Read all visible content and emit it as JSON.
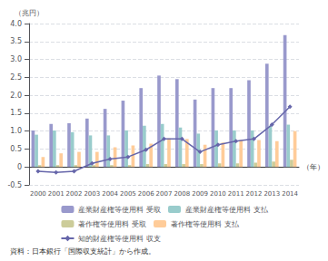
{
  "chart_data": {
    "type": "bar",
    "categories": [
      "2000",
      "2001",
      "2002",
      "2003",
      "2004",
      "2005",
      "2006",
      "2007",
      "2008",
      "2009",
      "2010",
      "2011",
      "2012",
      "2013",
      "2014"
    ],
    "series": [
      {
        "name": "産業財産権等使用料 受取",
        "type": "bar",
        "color": "#9999cc",
        "values": [
          1.02,
          1.2,
          1.22,
          1.35,
          1.62,
          1.85,
          2.2,
          2.55,
          2.45,
          1.88,
          2.2,
          2.2,
          2.42,
          2.88,
          3.68
        ]
      },
      {
        "name": "産業財産権等使用料 支払",
        "type": "bar",
        "color": "#99cccc",
        "values": [
          0.9,
          1.02,
          0.97,
          0.88,
          0.88,
          1.02,
          1.15,
          1.2,
          1.1,
          0.93,
          1.02,
          1.02,
          1.02,
          1.15,
          1.18
        ]
      },
      {
        "name": "著作権等使用料 受取",
        "type": "bar",
        "color": "#cccc99",
        "values": [
          0.05,
          0.05,
          0.05,
          0.05,
          0.05,
          0.05,
          0.08,
          0.08,
          0.08,
          0.08,
          0.1,
          0.1,
          0.12,
          0.15,
          0.2
        ]
      },
      {
        "name": "著作権等使用料 支払",
        "type": "bar",
        "color": "#ffcc99",
        "values": [
          0.28,
          0.38,
          0.42,
          0.42,
          0.55,
          0.6,
          0.65,
          0.8,
          0.78,
          0.62,
          0.68,
          0.75,
          0.75,
          0.72,
          1.0
        ]
      },
      {
        "name": "知的財産権等使用料 収支",
        "type": "line",
        "color": "#6666aa",
        "marker": "diamond",
        "values": [
          -0.12,
          -0.15,
          -0.12,
          0.1,
          0.22,
          0.28,
          0.48,
          0.78,
          0.78,
          0.42,
          0.62,
          0.72,
          0.78,
          1.18,
          1.68
        ]
      }
    ],
    "xlabel": "（年）",
    "ylabel": "（兆円）",
    "annotations": [
      "資料：日本銀行「国際収支統計」から作成。"
    ],
    "ylim": [
      -0.5,
      4.0
    ],
    "yticks": [
      -0.5,
      0,
      0.5,
      {
        "value": 1.0,
        "label": "1.0"
      },
      1.5,
      {
        "value": 2.0,
        "label": "2.0"
      },
      2.5,
      {
        "value": 3.0,
        "label": "3.0"
      },
      3.5,
      {
        "value": 4.0,
        "label": "4.0"
      }
    ],
    "grid": true,
    "legend": "bottom"
  }
}
